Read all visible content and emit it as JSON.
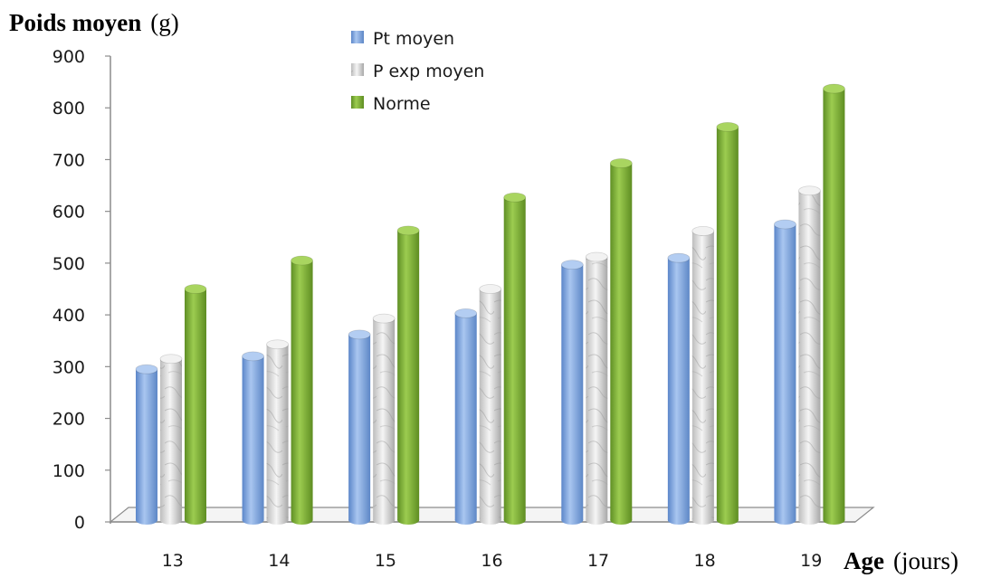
{
  "chart_data": {
    "type": "bar",
    "ylabel": "Poids moyen",
    "ylabel_unit": "(g)",
    "xlabel": "Age",
    "xlabel_unit": "(jours)",
    "categories": [
      "13",
      "14",
      "15",
      "16",
      "17",
      "18",
      "19"
    ],
    "ylim": [
      0,
      900
    ],
    "yticks": [
      "0",
      "100",
      "200",
      "300",
      "400",
      "500",
      "600",
      "700",
      "800",
      "900"
    ],
    "legend_position": "top",
    "grid": false,
    "series": [
      {
        "name": "Pt moyen",
        "color": "#7ea6e0",
        "values": [
          295,
          320,
          362,
          403,
          497,
          510,
          575
        ]
      },
      {
        "name": "P exp moyen",
        "color": "#d4d4d4",
        "values": [
          315,
          343,
          393,
          450,
          512,
          562,
          640
        ]
      },
      {
        "name": "Norme",
        "color": "#8ab840",
        "values": [
          450,
          505,
          563,
          627,
          693,
          763,
          837
        ]
      }
    ]
  }
}
